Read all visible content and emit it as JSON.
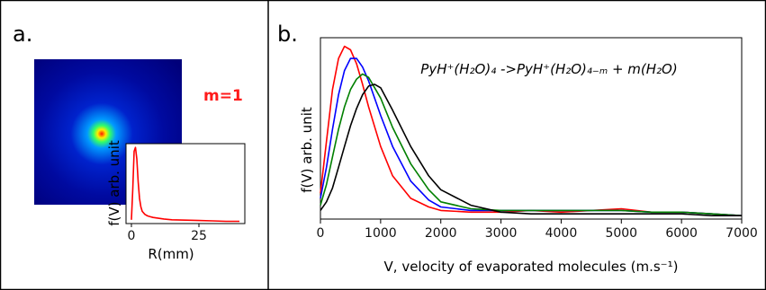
{
  "panel_a": {
    "label": "a.",
    "m_label": "m=1",
    "m_label_color": "#ff1a1a",
    "image": {
      "description_icon": "velocity-map-image",
      "background_color": "#00007a",
      "center_color": "#ff2200"
    }
  },
  "panel_b": {
    "label": "b."
  },
  "chart_data": [
    {
      "id": "inset",
      "type": "line",
      "xlabel": "R(mm)",
      "ylabel": "f(V) arb. unit",
      "xlim": [
        -2,
        42
      ],
      "ylim": [
        0,
        1.05
      ],
      "xticks": [
        0,
        25
      ],
      "y_tick_labels": false,
      "grid": false,
      "series": [
        {
          "color": "#ff0000",
          "x": [
            0,
            0.5,
            1,
            1.5,
            2,
            2.5,
            3,
            3.5,
            4,
            5,
            6,
            7,
            8,
            10,
            12,
            15,
            20,
            25,
            30,
            35,
            40
          ],
          "y": [
            0.05,
            0.45,
            0.95,
            1.0,
            0.85,
            0.55,
            0.33,
            0.22,
            0.16,
            0.12,
            0.1,
            0.09,
            0.08,
            0.07,
            0.06,
            0.05,
            0.045,
            0.04,
            0.035,
            0.03,
            0.03
          ]
        }
      ]
    },
    {
      "id": "main",
      "type": "line",
      "title": "PyH⁺(H₂O)₄ ->PyH⁺(H₂O)₄₋ₘ + m(H₂O)",
      "xlabel": "V, velocity of evaporated molecules (m.s⁻¹)",
      "ylabel": "f(V) arb. unit",
      "xlim": [
        0,
        7000
      ],
      "ylim": [
        0,
        1.05
      ],
      "xticks": [
        0,
        1000,
        2000,
        3000,
        4000,
        5000,
        6000,
        7000
      ],
      "y_tick_labels": false,
      "grid": false,
      "series": [
        {
          "color": "#ff0000",
          "x": [
            0,
            100,
            200,
            300,
            400,
            500,
            600,
            700,
            800,
            1000,
            1200,
            1500,
            1800,
            2000,
            2500,
            3000,
            3500,
            4000,
            4500,
            5000,
            5500,
            6000,
            6500,
            7000
          ],
          "y": [
            0.15,
            0.45,
            0.75,
            0.93,
            1.0,
            0.98,
            0.9,
            0.78,
            0.65,
            0.42,
            0.25,
            0.12,
            0.07,
            0.05,
            0.04,
            0.04,
            0.05,
            0.04,
            0.05,
            0.06,
            0.04,
            0.04,
            0.03,
            0.02
          ]
        },
        {
          "color": "#0000ff",
          "x": [
            0,
            100,
            200,
            300,
            400,
            500,
            600,
            700,
            800,
            1000,
            1200,
            1500,
            1800,
            2000,
            2500,
            3000,
            3500,
            4000,
            4500,
            5000,
            5500,
            6000,
            6500,
            7000
          ],
          "y": [
            0.12,
            0.3,
            0.52,
            0.72,
            0.86,
            0.93,
            0.93,
            0.88,
            0.8,
            0.6,
            0.42,
            0.22,
            0.11,
            0.07,
            0.05,
            0.05,
            0.05,
            0.05,
            0.05,
            0.05,
            0.04,
            0.04,
            0.03,
            0.02
          ]
        },
        {
          "color": "#008000",
          "x": [
            0,
            100,
            200,
            300,
            400,
            500,
            600,
            700,
            800,
            1000,
            1200,
            1500,
            1800,
            2000,
            2500,
            3000,
            3500,
            4000,
            4500,
            5000,
            5500,
            6000,
            6500,
            7000
          ],
          "y": [
            0.08,
            0.2,
            0.36,
            0.52,
            0.65,
            0.75,
            0.81,
            0.84,
            0.82,
            0.7,
            0.53,
            0.32,
            0.17,
            0.1,
            0.06,
            0.05,
            0.05,
            0.05,
            0.05,
            0.05,
            0.04,
            0.04,
            0.03,
            0.02
          ]
        },
        {
          "color": "#000000",
          "x": [
            0,
            100,
            200,
            300,
            400,
            500,
            600,
            700,
            800,
            900,
            1000,
            1200,
            1500,
            1800,
            2000,
            2500,
            3000,
            3500,
            4000,
            4500,
            5000,
            5500,
            6000,
            6500,
            7000
          ],
          "y": [
            0.05,
            0.1,
            0.18,
            0.3,
            0.42,
            0.54,
            0.64,
            0.72,
            0.77,
            0.78,
            0.76,
            0.63,
            0.42,
            0.25,
            0.17,
            0.08,
            0.04,
            0.03,
            0.03,
            0.03,
            0.03,
            0.03,
            0.03,
            0.02,
            0.02
          ]
        }
      ]
    }
  ]
}
